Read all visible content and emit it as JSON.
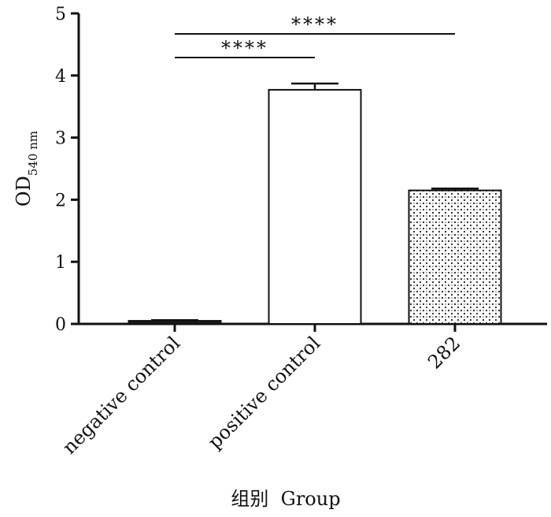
{
  "chart_data": {
    "type": "bar",
    "categories": [
      "negative control",
      "positive control",
      "282"
    ],
    "values": [
      0.05,
      3.77,
      2.15
    ],
    "errors": [
      0.01,
      0.1,
      0.03
    ],
    "ylabel_main": "OD",
    "ylabel_sub": "540 nm",
    "xlabel": "组别  Group",
    "ylim": [
      0,
      5
    ],
    "yticks": [
      0,
      1,
      2,
      3,
      4,
      5
    ],
    "significance": [
      {
        "from": 1,
        "to": 2,
        "label": "****"
      },
      {
        "from": 1,
        "to": 3,
        "label": "****"
      }
    ],
    "bar_fills": [
      "black",
      "white",
      "dotted"
    ],
    "grid": false
  }
}
